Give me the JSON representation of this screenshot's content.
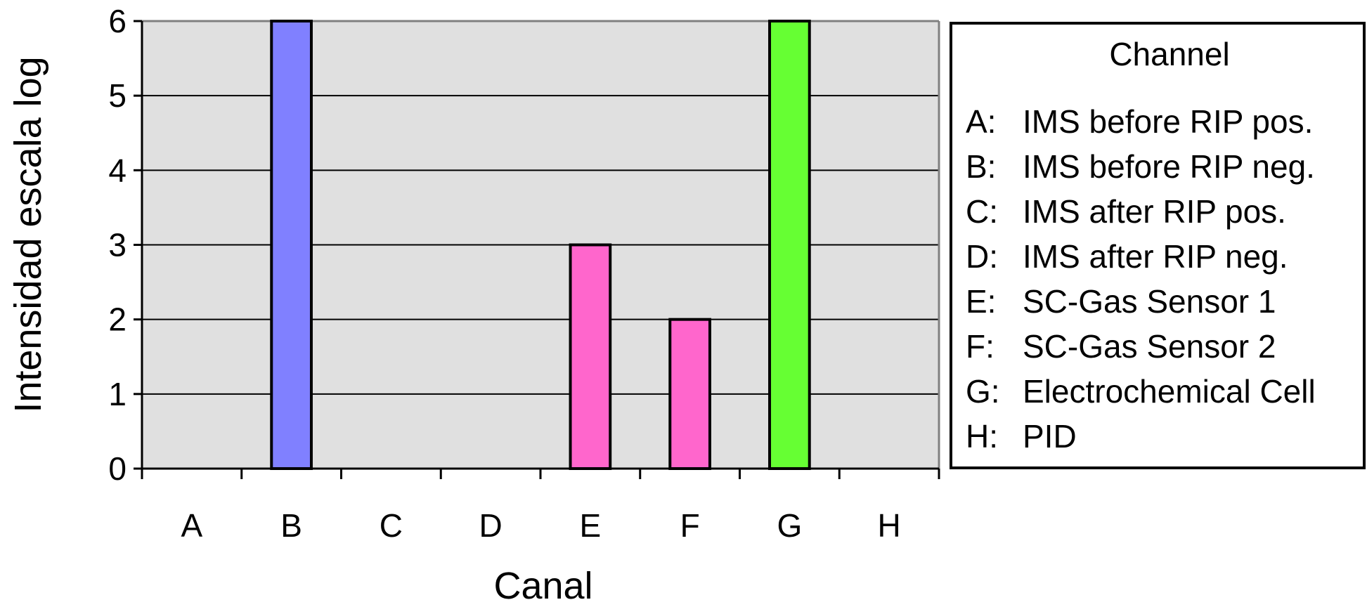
{
  "chart_data": {
    "type": "bar",
    "categories": [
      "A",
      "B",
      "C",
      "D",
      "E",
      "F",
      "G",
      "H"
    ],
    "values": [
      0,
      6,
      0,
      0,
      3,
      2,
      6,
      0
    ],
    "bar_colors": [
      "#8080ff",
      "#8080ff",
      "#8080ff",
      "#8080ff",
      "#ff66cc",
      "#ff66cc",
      "#66ff33",
      "#66ff33"
    ],
    "title": "",
    "xlabel": "Canal",
    "ylabel": "Intensidad escala log",
    "ylim": [
      0,
      6
    ],
    "yticks": [
      0,
      1,
      2,
      3,
      4,
      5,
      6
    ],
    "grid": true,
    "plot_background": "#e0e0e0",
    "legend": {
      "title": "Channel",
      "placement": "right",
      "entries": [
        {
          "key": "A:",
          "text": "IMS before RIP pos."
        },
        {
          "key": "B:",
          "text": "IMS before RIP neg."
        },
        {
          "key": "C:",
          "text": "IMS after RIP pos."
        },
        {
          "key": "D:",
          "text": "IMS after RIP neg."
        },
        {
          "key": "E:",
          "text": "SC-Gas Sensor 1"
        },
        {
          "key": "F:",
          "text": "SC-Gas Sensor 2"
        },
        {
          "key": "G:",
          "text": "Electrochemical Cell"
        },
        {
          "key": "H:",
          "text": "PID"
        }
      ]
    }
  }
}
